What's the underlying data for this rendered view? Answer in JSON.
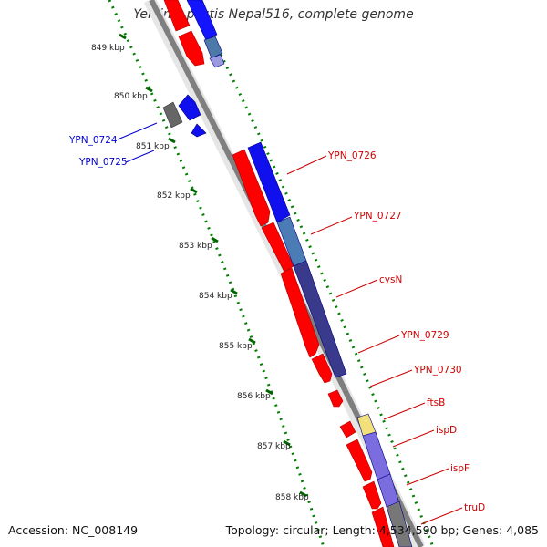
{
  "title": "Yersinia pestis Nepal516, complete genome",
  "accession_text": "Accession: NC_008149",
  "info_text": "Topology: circular; Length: 4,534,590 bp; Genes: 4,085",
  "colors": {
    "forward_cds": "#ff0000",
    "forward_cds_dark": "#b00000",
    "reverse_cds": "#0000ff",
    "reverse_cds_dark": "#000080",
    "reverse_label": "#0000cc",
    "forward_label": "#cc0000",
    "tick_dot": "#008000",
    "tick_major": "#006400",
    "backbone": "#888888",
    "pseudo": "#555555",
    "yellow_feature": "#f2e17a"
  },
  "scale_labels": [
    "849 kbp",
    "850 kbp",
    "851 kbp",
    "852 kbp",
    "853 kbp",
    "854 kbp",
    "855 kbp",
    "856 kbp",
    "857 kbp",
    "858 kbp"
  ],
  "gene_labels_left": [
    "YPN_0724",
    "YPN_0725"
  ],
  "gene_labels_right": [
    "YPN_0726",
    "YPN_0727",
    "cysN",
    "YPN_0729",
    "YPN_0730",
    "ftsB",
    "ispD",
    "ispF",
    "truD"
  ]
}
